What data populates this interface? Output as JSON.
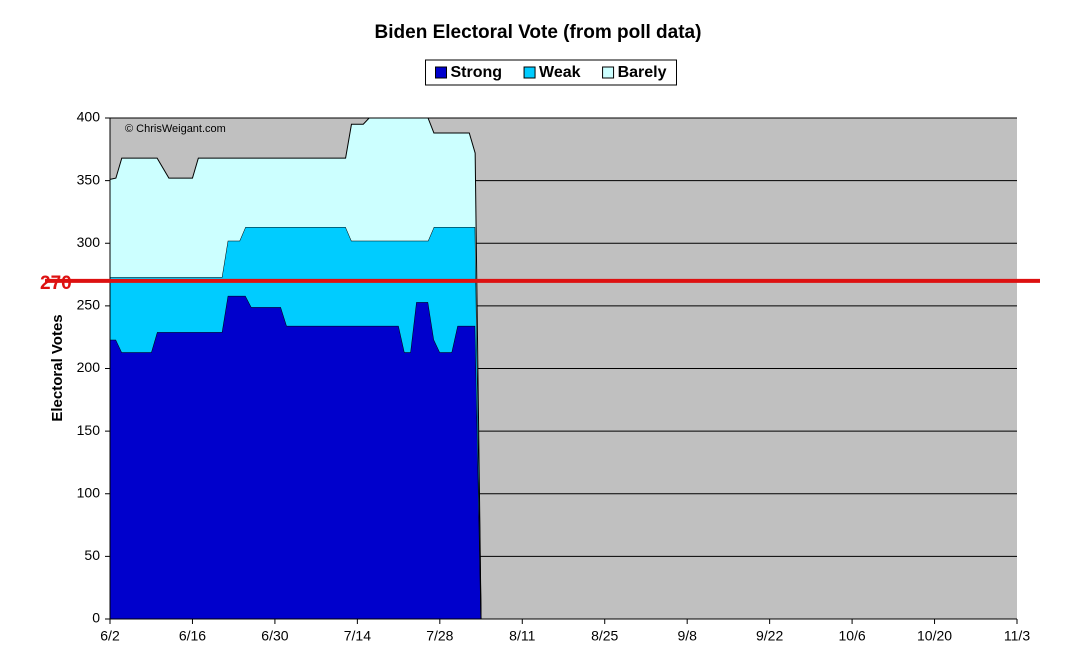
{
  "chart_data": {
    "type": "stacked_area",
    "title": "Biden Electoral Vote (from poll data)",
    "y_label": "Electoral Votes",
    "annotation": "© ChrisWeigant.com",
    "categories": [
      "6/2",
      null,
      null,
      null,
      null,
      null,
      null,
      null,
      null,
      null,
      null,
      null,
      null,
      null,
      "6/16",
      null,
      null,
      null,
      null,
      null,
      null,
      null,
      null,
      null,
      null,
      null,
      null,
      null,
      "6/30",
      null,
      null,
      null,
      null,
      null,
      null,
      null,
      null,
      null,
      null,
      null,
      null,
      null,
      "7/14",
      null,
      null,
      null,
      null,
      null,
      null,
      null,
      null,
      null,
      null,
      null,
      null,
      null,
      "7/28",
      null,
      null,
      null,
      null,
      null,
      null,
      null,
      null,
      null,
      null,
      null,
      null,
      null,
      "8/11",
      null,
      null,
      null,
      null,
      null,
      null,
      null,
      null,
      null,
      null,
      null,
      null,
      null,
      "8/25",
      null,
      null,
      null,
      null,
      null,
      null,
      null,
      null,
      null,
      null,
      null,
      null,
      null,
      "9/8",
      null,
      null,
      null,
      null,
      null,
      null,
      null,
      null,
      null,
      null,
      null,
      null,
      null,
      "9/22",
      null,
      null,
      null,
      null,
      null,
      null,
      null,
      null,
      null,
      null,
      null,
      null,
      null,
      "10/6",
      null,
      null,
      null,
      null,
      null,
      null,
      null,
      null,
      null,
      null,
      null,
      null,
      null,
      "10/20",
      null,
      null,
      null,
      null,
      null,
      null,
      null,
      null,
      null,
      null,
      null,
      null,
      null,
      "11/3"
    ],
    "series": [
      {
        "name": "Strong",
        "color": "#0000cc",
        "values": [
          223,
          223,
          213,
          213,
          213,
          213,
          213,
          213,
          229,
          229,
          229,
          229,
          229,
          229,
          229,
          229,
          229,
          229,
          229,
          229,
          258,
          258,
          258,
          258,
          249,
          249,
          249,
          249,
          249,
          249,
          234,
          234,
          234,
          234,
          234,
          234,
          234,
          234,
          234,
          234,
          234,
          234,
          234,
          234,
          234,
          234,
          234,
          234,
          234,
          234,
          213,
          213,
          253,
          253,
          253,
          223,
          213,
          213,
          213,
          234,
          234,
          234,
          234,
          0,
          null,
          null,
          null,
          null,
          null,
          null,
          null,
          null,
          null,
          null,
          null,
          null,
          null,
          null,
          null,
          null,
          null,
          null,
          null,
          null,
          null,
          null,
          null,
          null,
          null,
          null,
          null,
          null,
          null,
          null,
          null,
          null,
          null,
          null,
          null,
          null,
          null,
          null,
          null,
          null,
          null,
          null,
          null,
          null,
          null,
          null,
          null,
          null,
          null,
          null,
          null,
          null,
          null,
          null,
          null,
          null,
          null,
          null,
          null,
          null,
          null,
          null,
          null,
          null,
          null,
          null,
          null,
          null,
          null,
          null,
          null,
          null,
          null,
          null,
          null,
          null,
          null,
          null,
          null,
          null,
          null,
          null,
          null,
          null,
          null,
          null,
          null,
          null,
          null,
          null,
          null
        ]
      },
      {
        "name": "Weak",
        "color": "#00ccff",
        "values": [
          50,
          50,
          60,
          60,
          60,
          60,
          60,
          60,
          44,
          44,
          44,
          44,
          44,
          44,
          44,
          44,
          44,
          44,
          44,
          44,
          44,
          44,
          44,
          55,
          64,
          64,
          64,
          64,
          64,
          64,
          79,
          79,
          79,
          79,
          79,
          79,
          79,
          79,
          79,
          79,
          79,
          68,
          68,
          68,
          68,
          68,
          68,
          68,
          68,
          68,
          89,
          89,
          49,
          49,
          49,
          90,
          100,
          100,
          100,
          79,
          79,
          79,
          79,
          0,
          null,
          null,
          null,
          null,
          null,
          null,
          null,
          null,
          null,
          null,
          null,
          null,
          null,
          null,
          null,
          null,
          null,
          null,
          null,
          null,
          null,
          null,
          null,
          null,
          null,
          null,
          null,
          null,
          null,
          null,
          null,
          null,
          null,
          null,
          null,
          null,
          null,
          null,
          null,
          null,
          null,
          null,
          null,
          null,
          null,
          null,
          null,
          null,
          null,
          null,
          null,
          null,
          null,
          null,
          null,
          null,
          null,
          null,
          null,
          null,
          null,
          null,
          null,
          null,
          null,
          null,
          null,
          null,
          null,
          null,
          null,
          null,
          null,
          null,
          null,
          null,
          null,
          null,
          null,
          null,
          null,
          null,
          null,
          null,
          null,
          null,
          null,
          null,
          null,
          null,
          null
        ]
      },
      {
        "name": "Barely",
        "color": "#ccffff",
        "values": [
          78,
          79,
          95,
          95,
          95,
          95,
          95,
          95,
          95,
          87,
          79,
          79,
          79,
          79,
          79,
          95,
          95,
          95,
          95,
          95,
          66,
          66,
          66,
          55,
          55,
          55,
          55,
          55,
          55,
          55,
          55,
          55,
          55,
          55,
          55,
          55,
          55,
          55,
          55,
          55,
          55,
          93,
          93,
          93,
          98,
          98,
          98,
          98,
          98,
          98,
          98,
          98,
          98,
          98,
          98,
          75,
          75,
          75,
          75,
          75,
          75,
          75,
          59,
          0,
          null,
          null,
          null,
          null,
          null,
          null,
          null,
          null,
          null,
          null,
          null,
          null,
          null,
          null,
          null,
          null,
          null,
          null,
          null,
          null,
          null,
          null,
          null,
          null,
          null,
          null,
          null,
          null,
          null,
          null,
          null,
          null,
          null,
          null,
          null,
          null,
          null,
          null,
          null,
          null,
          null,
          null,
          null,
          null,
          null,
          null,
          null,
          null,
          null,
          null,
          null,
          null,
          null,
          null,
          null,
          null,
          null,
          null,
          null,
          null,
          null,
          null,
          null,
          null,
          null,
          null,
          null,
          null,
          null,
          null,
          null,
          null,
          null,
          null,
          null,
          null,
          null,
          null,
          null,
          null,
          null,
          null,
          null,
          null,
          null,
          null,
          null,
          null,
          null,
          null,
          null
        ]
      }
    ],
    "ylim": [
      0,
      400
    ],
    "yticks": [
      0,
      50,
      100,
      150,
      200,
      250,
      300,
      350,
      400
    ],
    "grid": true,
    "plot_background": "#c0c0c0",
    "legend": "top",
    "reference_line": {
      "value": 270,
      "color": "#dd1111"
    }
  }
}
